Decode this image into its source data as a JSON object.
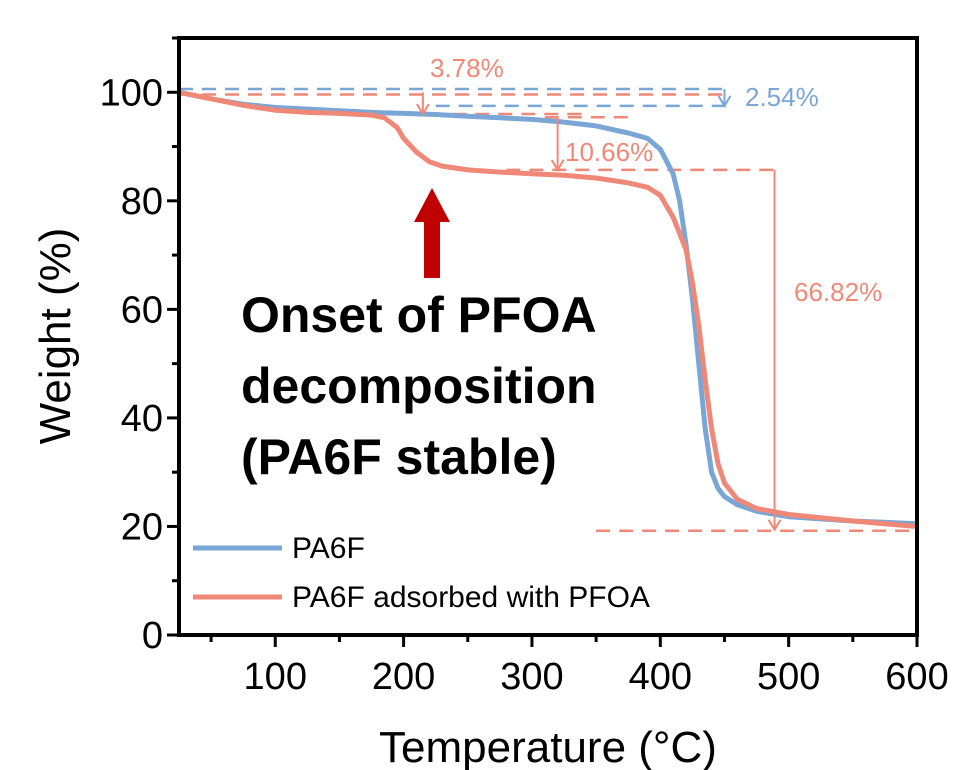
{
  "chart_data": {
    "type": "line",
    "xlabel": "Temperature (°C)",
    "ylabel": "Weight (%)",
    "xlim": [
      25,
      600
    ],
    "ylim": [
      0,
      110
    ],
    "xticks": [
      100,
      200,
      300,
      400,
      500,
      600
    ],
    "yticks": [
      0,
      20,
      40,
      60,
      80,
      100
    ],
    "legend_position": "bottom-left",
    "series": [
      {
        "name": "PA6F",
        "color": "#7aa6d6",
        "x": [
          25,
          50,
          75,
          100,
          125,
          150,
          175,
          200,
          225,
          250,
          275,
          300,
          325,
          350,
          375,
          390,
          400,
          410,
          415,
          420,
          425,
          430,
          435,
          440,
          445,
          450,
          460,
          475,
          500,
          550,
          600
        ],
        "y": [
          100,
          98.8,
          97.8,
          97.2,
          96.9,
          96.6,
          96.3,
          96.1,
          95.9,
          95.6,
          95.3,
          95.0,
          94.5,
          93.8,
          92.5,
          91.5,
          89.5,
          85,
          80,
          72,
          62,
          50,
          38,
          30,
          27,
          25.5,
          24,
          22.8,
          21.8,
          21.0,
          20.5
        ]
      },
      {
        "name": "PA6F adsorbed with PFOA",
        "color": "#f08878",
        "x": [
          25,
          50,
          75,
          100,
          125,
          150,
          175,
          185,
          195,
          200,
          210,
          220,
          230,
          250,
          275,
          300,
          325,
          350,
          375,
          390,
          400,
          410,
          420,
          425,
          430,
          435,
          440,
          445,
          450,
          460,
          475,
          500,
          550,
          600
        ],
        "y": [
          100,
          98.8,
          97.6,
          96.7,
          96.3,
          96.1,
          95.8,
          95.3,
          93.5,
          91.5,
          89.0,
          87.2,
          86.4,
          85.7,
          85.3,
          85.0,
          84.7,
          84.2,
          83.3,
          82.5,
          81.0,
          77.0,
          71.0,
          65.0,
          57.0,
          47.0,
          38.0,
          31.5,
          28.0,
          25.0,
          23.3,
          22.2,
          21.0,
          20.0
        ]
      }
    ],
    "annotations": [
      {
        "text": "3.78%",
        "color": "#f08878"
      },
      {
        "text": "2.54%",
        "color": "#7aa6d6"
      },
      {
        "text": "10.66%",
        "color": "#f08878"
      },
      {
        "text": "66.82%",
        "color": "#f08878"
      }
    ],
    "callout": {
      "lines": [
        "Onset of PFOA",
        "decomposition",
        "(PA6F stable)"
      ],
      "arrow_color": "#c00000"
    }
  }
}
